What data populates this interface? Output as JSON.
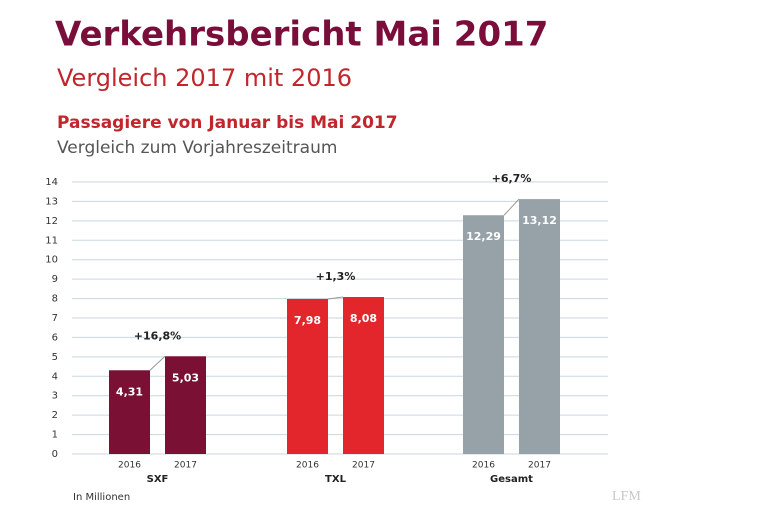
{
  "chart_data": {
    "type": "bar",
    "title": "Verkehrsbericht Mai 2017",
    "subtitle": "Vergleich 2017 mit 2016",
    "chart_title": "Passagiere von Januar bis Mai 2017",
    "chart_subtitle": "Vergleich zum Vorjahreszeitraum",
    "unit_note": "In Millionen",
    "watermark": "LFM",
    "ylim": [
      0,
      14
    ],
    "yticks": [
      0,
      1,
      2,
      3,
      4,
      5,
      6,
      7,
      8,
      9,
      10,
      11,
      12,
      13,
      14
    ],
    "grid": true,
    "groups": [
      {
        "name": "SXF",
        "color": "#7b1035",
        "categories": [
          "2016",
          "2017"
        ],
        "values": [
          4.31,
          5.03
        ],
        "value_labels": [
          "4,31",
          "5,03"
        ],
        "change": "+16,8%"
      },
      {
        "name": "TXL",
        "color": "#e3262b",
        "categories": [
          "2016",
          "2017"
        ],
        "values": [
          7.98,
          8.08
        ],
        "value_labels": [
          "7,98",
          "8,08"
        ],
        "change": "+1,3%"
      },
      {
        "name": "Gesamt",
        "color": "#97a2a8",
        "categories": [
          "2016",
          "2017"
        ],
        "values": [
          12.29,
          13.12
        ],
        "value_labels": [
          "12,29",
          "13,12"
        ],
        "change": "+6,7%"
      }
    ]
  }
}
